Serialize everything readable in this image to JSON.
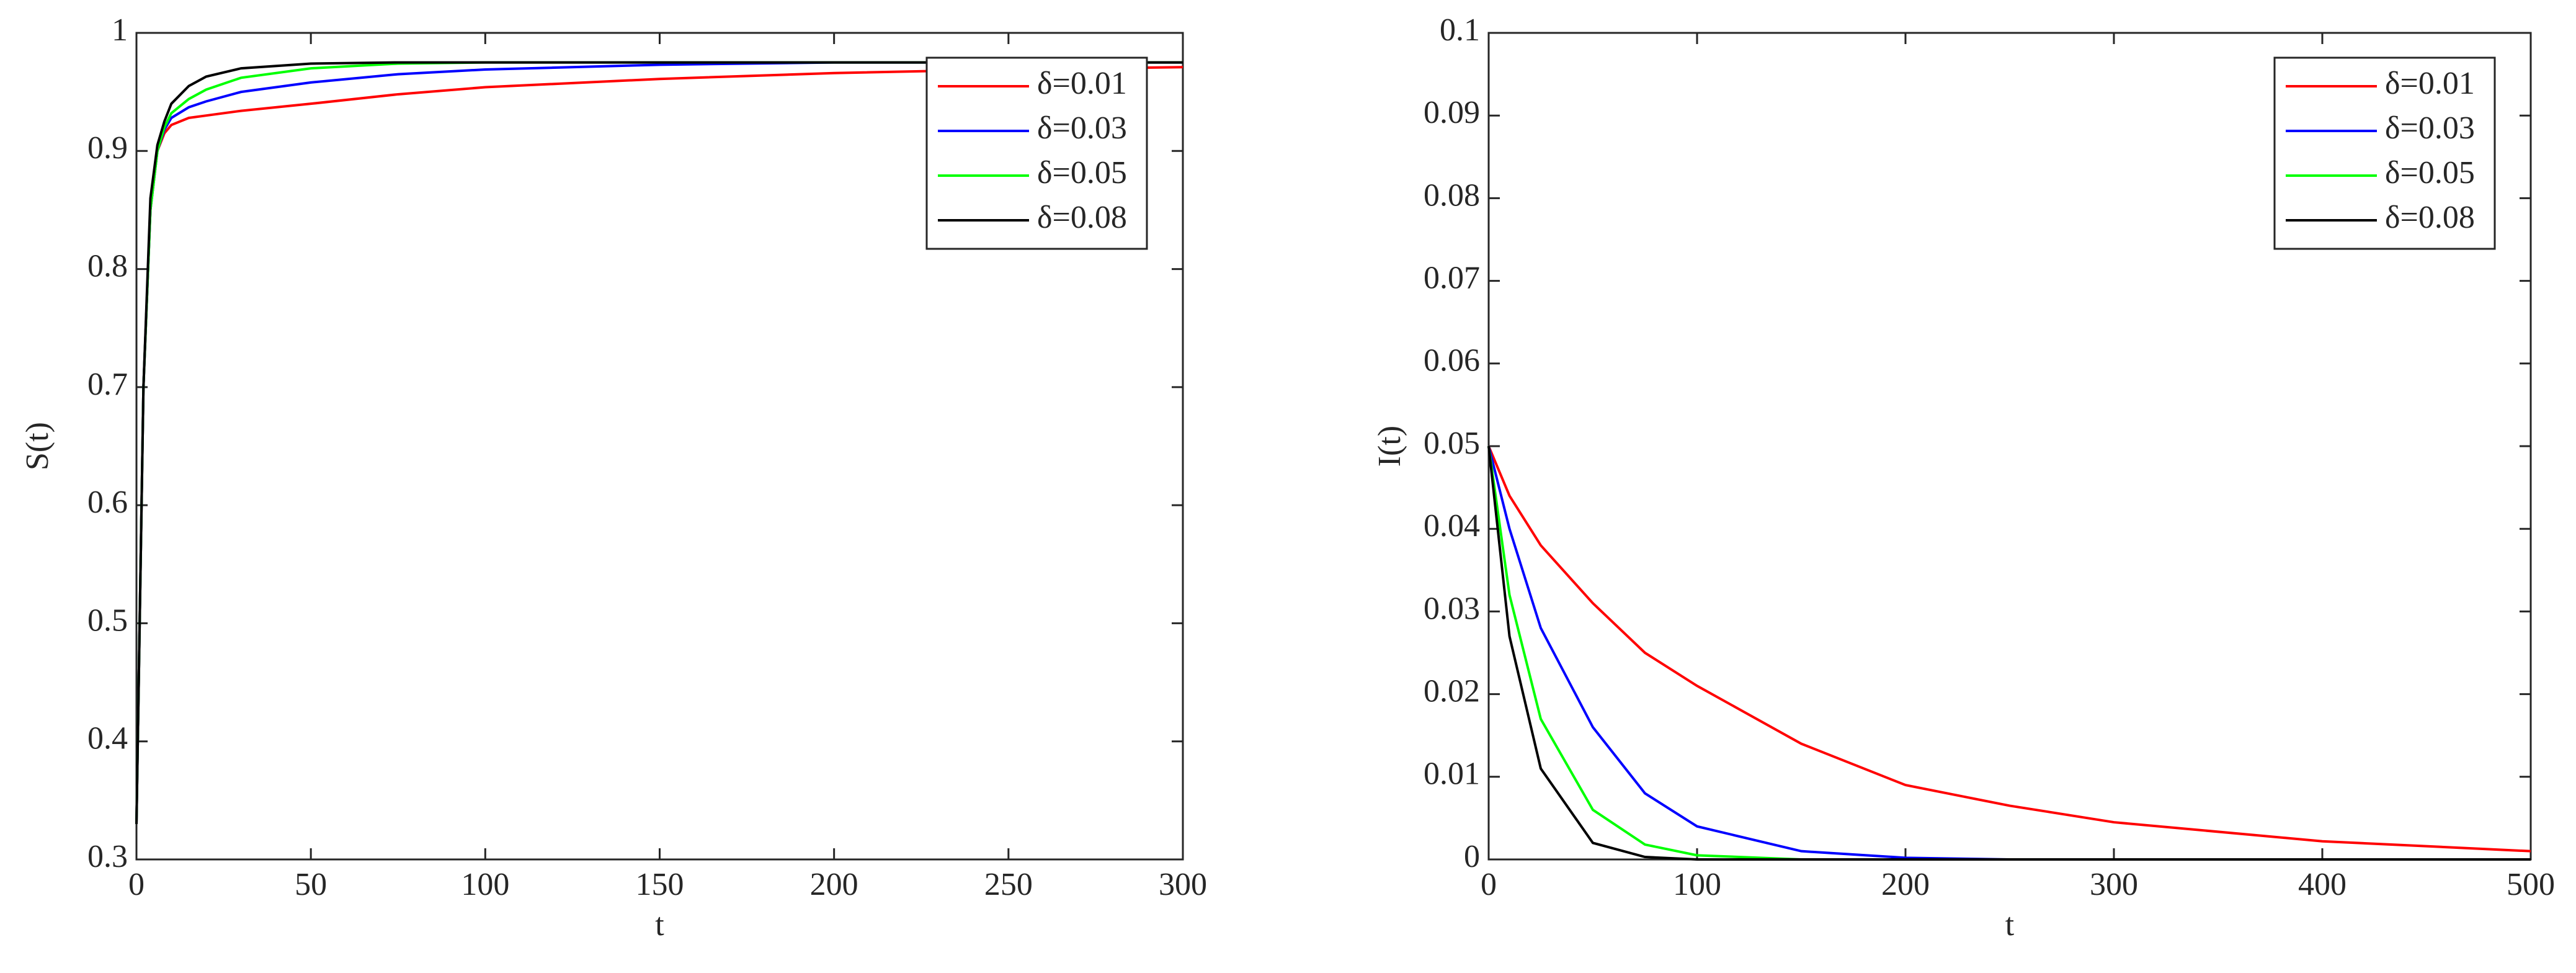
{
  "chart_data": [
    {
      "type": "line",
      "xlabel": "t",
      "ylabel": "S(t)",
      "x": [
        0,
        2,
        4,
        6,
        8,
        10,
        15,
        20,
        30,
        50,
        75,
        100,
        150,
        200,
        250,
        300
      ],
      "series": [
        {
          "name": "δ=0.01",
          "color": "#ff0000",
          "values": [
            0.33,
            0.7,
            0.85,
            0.9,
            0.915,
            0.922,
            0.928,
            0.93,
            0.934,
            0.94,
            0.948,
            0.954,
            0.961,
            0.966,
            0.969,
            0.971
          ]
        },
        {
          "name": "δ=0.03",
          "color": "#0000ff",
          "values": [
            0.33,
            0.7,
            0.85,
            0.9,
            0.918,
            0.928,
            0.937,
            0.942,
            0.95,
            0.958,
            0.965,
            0.969,
            0.973,
            0.975,
            0.975,
            0.975
          ]
        },
        {
          "name": "δ=0.05",
          "color": "#00ff00",
          "values": [
            0.33,
            0.7,
            0.85,
            0.9,
            0.92,
            0.932,
            0.944,
            0.952,
            0.962,
            0.97,
            0.974,
            0.975,
            0.975,
            0.975,
            0.975,
            0.975
          ]
        },
        {
          "name": "δ=0.08",
          "color": "#000000",
          "values": [
            0.33,
            0.7,
            0.86,
            0.905,
            0.925,
            0.94,
            0.955,
            0.963,
            0.97,
            0.974,
            0.975,
            0.975,
            0.975,
            0.975,
            0.975,
            0.975
          ]
        }
      ],
      "xlim": [
        0,
        300
      ],
      "xticks": [
        0,
        50,
        100,
        150,
        200,
        250,
        300
      ],
      "ylim": [
        0.3,
        1
      ],
      "yticks": [
        0.3,
        0.4,
        0.5,
        0.6,
        0.7,
        0.8,
        0.9,
        1
      ],
      "legend": "upper right"
    },
    {
      "type": "line",
      "xlabel": "t",
      "ylabel": "I(t)",
      "x": [
        0,
        10,
        25,
        50,
        75,
        100,
        150,
        200,
        250,
        300,
        400,
        500
      ],
      "series": [
        {
          "name": "δ=0.01",
          "color": "#ff0000",
          "values": [
            0.05,
            0.044,
            0.038,
            0.031,
            0.025,
            0.021,
            0.014,
            0.009,
            0.0065,
            0.0045,
            0.0022,
            0.001
          ]
        },
        {
          "name": "δ=0.03",
          "color": "#0000ff",
          "values": [
            0.05,
            0.04,
            0.028,
            0.016,
            0.008,
            0.004,
            0.001,
            0.0002,
            0,
            0,
            0,
            0
          ]
        },
        {
          "name": "δ=0.05",
          "color": "#00ff00",
          "values": [
            0.05,
            0.032,
            0.017,
            0.006,
            0.0018,
            0.0005,
            0,
            0,
            0,
            0,
            0,
            0
          ]
        },
        {
          "name": "δ=0.08",
          "color": "#000000",
          "values": [
            0.05,
            0.027,
            0.011,
            0.002,
            0.0003,
            0,
            0,
            0,
            0,
            0,
            0,
            0
          ]
        }
      ],
      "xlim": [
        0,
        500
      ],
      "xticks": [
        0,
        100,
        200,
        300,
        400,
        500
      ],
      "ylim": [
        0,
        0.1
      ],
      "yticks": [
        0,
        0.01,
        0.02,
        0.03,
        0.04,
        0.05,
        0.06,
        0.07,
        0.08,
        0.09,
        0.1
      ],
      "legend": "upper right"
    }
  ]
}
